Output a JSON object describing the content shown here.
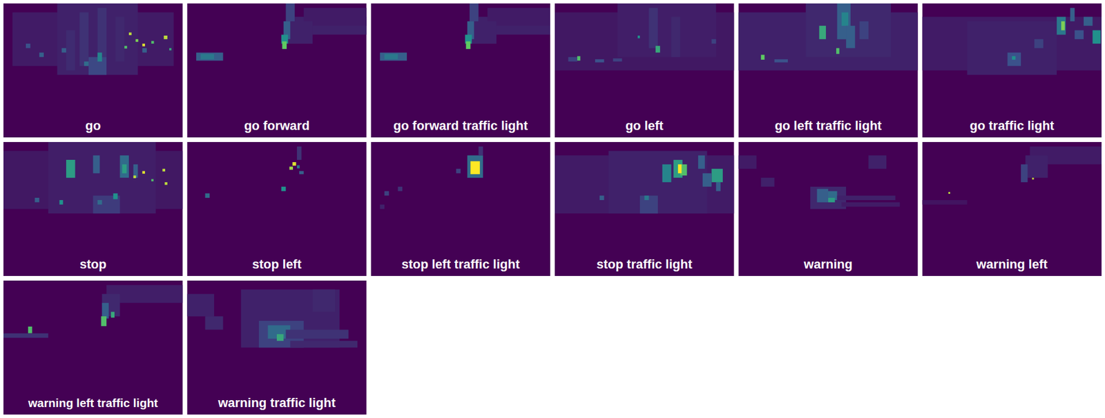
{
  "chart_data": [
    {
      "type": "heatmap",
      "title": "go",
      "xlim": [
        0,
        40
      ],
      "ylim": [
        0,
        30
      ],
      "tick_labels": false,
      "value_range": [
        0,
        1
      ],
      "colors": [
        "#440154",
        "#3b528b",
        "#21918c",
        "#5ec962",
        "#fde725"
      ],
      "cells": [
        [
          2,
          2,
          38,
          14,
          0.08
        ],
        [
          12,
          0,
          30,
          16,
          0.1
        ],
        [
          17,
          2,
          19,
          14,
          0.15
        ],
        [
          21,
          1,
          23,
          12,
          0.15
        ],
        [
          25,
          3,
          27,
          13,
          0.12
        ],
        [
          14,
          6,
          16,
          15,
          0.13
        ],
        [
          19,
          12,
          23,
          16,
          0.22
        ],
        [
          21,
          11,
          22,
          13,
          0.45
        ],
        [
          18,
          13,
          19,
          14,
          0.35
        ],
        [
          13,
          10,
          14,
          11,
          0.3
        ],
        [
          8,
          11,
          9,
          12,
          0.3
        ],
        [
          5,
          9,
          6,
          10,
          0.25
        ],
        [
          31,
          10,
          32,
          11,
          0.3
        ],
        [
          28,
          6.5,
          28.6,
          7.1,
          0.9
        ],
        [
          29.5,
          8,
          30.1,
          8.6,
          0.8
        ],
        [
          31,
          9,
          31.6,
          9.6,
          0.95
        ],
        [
          33,
          8.4,
          33.6,
          9,
          0.7
        ],
        [
          35.8,
          7.2,
          36.6,
          8,
          0.9
        ],
        [
          27,
          9.5,
          27.6,
          10.1,
          0.7
        ],
        [
          37,
          10,
          37.5,
          10.5,
          0.6
        ]
      ]
    },
    {
      "type": "heatmap",
      "title": "go forward",
      "xlim": [
        0,
        40
      ],
      "ylim": [
        0,
        30
      ],
      "tick_labels": false,
      "value_range": [
        0,
        1
      ],
      "colors": [
        "#440154",
        "#3b528b",
        "#21918c",
        "#5ec962",
        "#fde725"
      ],
      "cells": [
        [
          24,
          3,
          40,
          7,
          0.1
        ],
        [
          26,
          1,
          40,
          5,
          0.08
        ],
        [
          22,
          4,
          28,
          9,
          0.1
        ],
        [
          22,
          0,
          24,
          4,
          0.2
        ],
        [
          21.5,
          4,
          23,
          8,
          0.3
        ],
        [
          21,
          7,
          22.5,
          9,
          0.5
        ],
        [
          21.2,
          8.5,
          22.2,
          10.2,
          0.75
        ],
        [
          2,
          11,
          8,
          12.8,
          0.3
        ],
        [
          3,
          11.3,
          6,
          12.5,
          0.4
        ]
      ]
    },
    {
      "type": "heatmap",
      "title": "go forward traffic light",
      "xlim": [
        0,
        40
      ],
      "ylim": [
        0,
        30
      ],
      "tick_labels": false,
      "value_range": [
        0,
        1
      ],
      "colors": [
        "#440154",
        "#3b528b",
        "#21918c",
        "#5ec962",
        "#fde725"
      ],
      "cells": [
        [
          24,
          3,
          40,
          7,
          0.1
        ],
        [
          26,
          1,
          40,
          5,
          0.08
        ],
        [
          22,
          4,
          28,
          9,
          0.1
        ],
        [
          22,
          0,
          24,
          4,
          0.2
        ],
        [
          21.5,
          4,
          23,
          8,
          0.3
        ],
        [
          21,
          7,
          22.5,
          9,
          0.5
        ],
        [
          21.2,
          8.5,
          22.2,
          10.2,
          0.75
        ],
        [
          2,
          11,
          8,
          12.8,
          0.3
        ],
        [
          3,
          11.3,
          6,
          12.5,
          0.4
        ]
      ]
    },
    {
      "type": "heatmap",
      "title": "go left",
      "xlim": [
        0,
        40
      ],
      "ylim": [
        0,
        30
      ],
      "tick_labels": false,
      "value_range": [
        0,
        1
      ],
      "colors": [
        "#440154",
        "#3b528b",
        "#21918c",
        "#5ec962",
        "#fde725"
      ],
      "cells": [
        [
          0,
          2,
          40,
          15,
          0.07
        ],
        [
          14,
          0,
          36,
          12,
          0.09
        ],
        [
          21,
          1,
          23,
          10,
          0.15
        ],
        [
          26,
          3,
          28,
          12,
          0.12
        ],
        [
          22.5,
          9.5,
          23.5,
          11,
          0.6
        ],
        [
          18.5,
          7.2,
          19,
          7.8,
          0.5
        ],
        [
          5,
          11.8,
          5.7,
          12.8,
          0.7
        ],
        [
          9,
          12.5,
          11,
          13.2,
          0.25
        ],
        [
          3,
          12,
          5,
          13,
          0.2
        ],
        [
          13,
          12.3,
          15,
          13,
          0.2
        ],
        [
          35,
          8,
          36,
          9,
          0.2
        ]
      ]
    },
    {
      "type": "heatmap",
      "title": "go left traffic light",
      "xlim": [
        0,
        40
      ],
      "ylim": [
        0,
        30
      ],
      "tick_labels": false,
      "value_range": [
        0,
        1
      ],
      "colors": [
        "#440154",
        "#3b528b",
        "#21918c",
        "#5ec962",
        "#fde725"
      ],
      "cells": [
        [
          0,
          2,
          40,
          15,
          0.1
        ],
        [
          15,
          0,
          34,
          12,
          0.12
        ],
        [
          18,
          5,
          19.5,
          8,
          0.6
        ],
        [
          22,
          0,
          25,
          8,
          0.3
        ],
        [
          23,
          2,
          24.5,
          5,
          0.45
        ],
        [
          24,
          5,
          26,
          10,
          0.3
        ],
        [
          21.8,
          10,
          22.5,
          11.3,
          0.7
        ],
        [
          5,
          11.5,
          5.8,
          12.6,
          0.75
        ],
        [
          8,
          12.5,
          11,
          13.2,
          0.25
        ],
        [
          27,
          4,
          29,
          8,
          0.2
        ]
      ]
    },
    {
      "type": "heatmap",
      "title": "go traffic light",
      "xlim": [
        0,
        40
      ],
      "ylim": [
        0,
        30
      ],
      "tick_labels": false,
      "value_range": [
        0,
        1
      ],
      "colors": [
        "#440154",
        "#3b528b",
        "#21918c",
        "#5ec962",
        "#fde725"
      ],
      "cells": [
        [
          0,
          3,
          40,
          15,
          0.08
        ],
        [
          10,
          4,
          30,
          16,
          0.1
        ],
        [
          30,
          3,
          32,
          7,
          0.4
        ],
        [
          31,
          4,
          31.8,
          6,
          0.8
        ],
        [
          33,
          1,
          34,
          4,
          0.3
        ],
        [
          38,
          6,
          39.8,
          9,
          0.5
        ],
        [
          36,
          3,
          38,
          5,
          0.3
        ],
        [
          34,
          6,
          36,
          8,
          0.25
        ],
        [
          25,
          8,
          27,
          10,
          0.2
        ],
        [
          19,
          11,
          22,
          14,
          0.25
        ],
        [
          20,
          11.8,
          20.8,
          12.6,
          0.5
        ]
      ]
    },
    {
      "type": "heatmap",
      "title": "stop",
      "xlim": [
        0,
        40
      ],
      "ylim": [
        0,
        30
      ],
      "tick_labels": false,
      "value_range": [
        0,
        1
      ],
      "colors": [
        "#440154",
        "#3b528b",
        "#21918c",
        "#5ec962",
        "#fde725"
      ],
      "cells": [
        [
          0,
          2,
          40,
          15,
          0.07
        ],
        [
          10,
          0,
          34,
          16,
          0.09
        ],
        [
          14,
          4,
          16,
          8,
          0.55
        ],
        [
          20,
          3,
          21.5,
          7,
          0.3
        ],
        [
          26,
          3,
          28,
          8,
          0.35
        ],
        [
          26.5,
          5,
          27.5,
          7,
          0.55
        ],
        [
          29,
          5,
          30,
          8,
          0.3
        ],
        [
          29,
          7.5,
          29.6,
          8.1,
          0.9
        ],
        [
          31,
          6.5,
          31.6,
          7.1,
          0.95
        ],
        [
          35.5,
          6,
          36.1,
          6.6,
          0.9
        ],
        [
          36,
          9,
          36.6,
          9.6,
          0.9
        ],
        [
          33,
          8.3,
          33.5,
          8.8,
          0.7
        ],
        [
          20,
          12,
          26,
          16,
          0.18
        ],
        [
          24.5,
          11.5,
          25.5,
          12.8,
          0.5
        ],
        [
          21,
          13,
          22,
          14,
          0.35
        ],
        [
          12.5,
          13,
          13.3,
          14,
          0.5
        ],
        [
          7,
          12.5,
          8,
          13.5,
          0.3
        ]
      ]
    },
    {
      "type": "heatmap",
      "title": "stop left",
      "xlim": [
        0,
        40
      ],
      "ylim": [
        0,
        30
      ],
      "tick_labels": false,
      "value_range": [
        0,
        1
      ],
      "colors": [
        "#440154",
        "#3b528b",
        "#21918c",
        "#5ec962",
        "#fde725"
      ],
      "cells": [
        [
          24.5,
          1,
          25.5,
          4,
          0.15
        ],
        [
          23.5,
          4.5,
          24.3,
          5.3,
          0.95
        ],
        [
          22.8,
          5.5,
          23.6,
          6.2,
          0.85
        ],
        [
          24.5,
          5.2,
          25.1,
          5.9,
          0.4
        ],
        [
          25,
          6.5,
          26,
          7.2,
          0.3
        ],
        [
          21,
          10,
          22,
          11,
          0.5
        ],
        [
          4,
          11.5,
          5,
          12.5,
          0.35
        ]
      ]
    },
    {
      "type": "heatmap",
      "title": "stop left traffic light",
      "xlim": [
        0,
        40
      ],
      "ylim": [
        0,
        30
      ],
      "tick_labels": false,
      "value_range": [
        0,
        1
      ],
      "colors": [
        "#440154",
        "#3b528b",
        "#21918c",
        "#5ec962",
        "#fde725"
      ],
      "cells": [
        [
          21.5,
          3,
          25,
          8,
          0.35
        ],
        [
          22.2,
          4.3,
          24.3,
          7.2,
          1.0
        ],
        [
          24,
          1,
          25,
          3,
          0.15
        ],
        [
          19,
          6,
          20,
          7,
          0.2
        ],
        [
          3,
          11,
          4,
          12,
          0.2
        ],
        [
          6,
          10,
          7,
          11,
          0.15
        ],
        [
          2,
          14,
          3,
          15,
          0.1
        ]
      ]
    },
    {
      "type": "heatmap",
      "title": "stop traffic light",
      "xlim": [
        0,
        40
      ],
      "ylim": [
        0,
        30
      ],
      "tick_labels": false,
      "value_range": [
        0,
        1
      ],
      "colors": [
        "#440154",
        "#3b528b",
        "#21918c",
        "#5ec962",
        "#fde725"
      ],
      "cells": [
        [
          0,
          3,
          40,
          16,
          0.08
        ],
        [
          12,
          2,
          34,
          16,
          0.1
        ],
        [
          24,
          5,
          26,
          9,
          0.45
        ],
        [
          26.5,
          4,
          28.5,
          8,
          0.55
        ],
        [
          28,
          5,
          29.5,
          7.5,
          0.7
        ],
        [
          27.5,
          5,
          28.3,
          7,
          1.0
        ],
        [
          32,
          3,
          33.5,
          6,
          0.3
        ],
        [
          35,
          6,
          37.5,
          9,
          0.55
        ],
        [
          33,
          7,
          35,
          10,
          0.3
        ],
        [
          36,
          9,
          37,
          11,
          0.3
        ],
        [
          19,
          12,
          23,
          16,
          0.2
        ],
        [
          20,
          12,
          21,
          13,
          0.4
        ],
        [
          10,
          12,
          11,
          13,
          0.3
        ]
      ]
    },
    {
      "type": "heatmap",
      "title": "warning",
      "xlim": [
        0,
        40
      ],
      "ylim": [
        0,
        30
      ],
      "tick_labels": false,
      "value_range": [
        0,
        1
      ],
      "colors": [
        "#440154",
        "#3b528b",
        "#21918c",
        "#5ec962",
        "#fde725"
      ],
      "cells": [
        [
          16,
          10,
          24,
          15,
          0.12
        ],
        [
          17.5,
          10.5,
          20,
          13.5,
          0.3
        ],
        [
          20,
          11,
          22,
          13,
          0.35
        ],
        [
          20,
          12.5,
          21.5,
          13.5,
          0.55
        ],
        [
          22,
          12,
          35,
          13,
          0.1
        ],
        [
          23,
          13.5,
          36,
          14.5,
          0.08
        ],
        [
          0,
          3,
          4,
          6,
          0.08
        ],
        [
          5,
          8,
          8,
          10,
          0.1
        ],
        [
          29,
          3,
          33,
          6,
          0.1
        ]
      ]
    },
    {
      "type": "heatmap",
      "title": "warning left",
      "xlim": [
        0,
        40
      ],
      "ylim": [
        0,
        30
      ],
      "tick_labels": false,
      "value_range": [
        0,
        1
      ],
      "colors": [
        "#440154",
        "#3b528b",
        "#21918c",
        "#5ec962",
        "#fde725"
      ],
      "cells": [
        [
          24,
          1,
          40,
          5,
          0.08
        ],
        [
          23,
          3,
          28,
          8,
          0.1
        ],
        [
          22,
          5,
          23.5,
          9,
          0.2
        ],
        [
          24.5,
          8,
          24.9,
          8.4,
          0.9
        ],
        [
          5.8,
          11.2,
          6.2,
          11.6,
          0.9
        ],
        [
          0,
          13,
          10,
          14,
          0.06
        ]
      ]
    },
    {
      "type": "heatmap",
      "title": "warning left traffic light",
      "xlim": [
        0,
        40
      ],
      "ylim": [
        0,
        30
      ],
      "tick_labels": false,
      "value_range": [
        0,
        1
      ],
      "colors": [
        "#440154",
        "#3b528b",
        "#21918c",
        "#5ec962",
        "#fde725"
      ],
      "cells": [
        [
          23,
          1,
          40,
          5,
          0.09
        ],
        [
          22,
          3,
          26,
          8,
          0.12
        ],
        [
          22,
          5,
          23.5,
          8.5,
          0.3
        ],
        [
          21.8,
          8,
          23,
          10.2,
          0.7
        ],
        [
          24,
          7,
          24.8,
          8.3,
          0.6
        ],
        [
          5.5,
          10.3,
          6.4,
          11.8,
          0.7
        ],
        [
          0,
          11.8,
          10,
          12.8,
          0.15
        ]
      ]
    },
    {
      "type": "heatmap",
      "title": "warning traffic light",
      "xlim": [
        0,
        40
      ],
      "ylim": [
        0,
        30
      ],
      "tick_labels": false,
      "value_range": [
        0,
        1
      ],
      "colors": [
        "#440154",
        "#3b528b",
        "#21918c",
        "#5ec962",
        "#fde725"
      ],
      "cells": [
        [
          12,
          2,
          34,
          15,
          0.1
        ],
        [
          16,
          9,
          26,
          15,
          0.2
        ],
        [
          18,
          10,
          23,
          13,
          0.35
        ],
        [
          20,
          12,
          21.5,
          13.5,
          0.6
        ],
        [
          22,
          11,
          36,
          13,
          0.15
        ],
        [
          23,
          13.5,
          38,
          15,
          0.12
        ],
        [
          0,
          3,
          6,
          8,
          0.1
        ],
        [
          4,
          8,
          8,
          11,
          0.12
        ],
        [
          28,
          2,
          33,
          7,
          0.12
        ]
      ]
    }
  ]
}
